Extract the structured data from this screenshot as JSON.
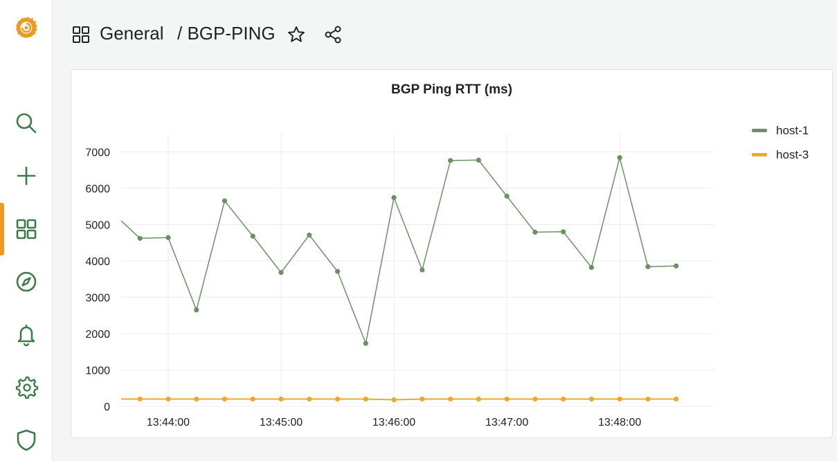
{
  "nav": {
    "items": [
      {
        "name": "grafana-logo-icon"
      },
      {
        "name": "search-icon"
      },
      {
        "name": "plus-icon"
      },
      {
        "name": "dashboards-grid-icon",
        "active": true
      },
      {
        "name": "compass-icon"
      },
      {
        "name": "bell-icon"
      },
      {
        "name": "gear-icon"
      },
      {
        "name": "shield-icon"
      }
    ],
    "accent_color": "#eb9a27",
    "icon_color": "#3c7a48"
  },
  "header": {
    "folder": "General",
    "dashboard": "/ BGP-PING"
  },
  "panel": {
    "title": "BGP Ping RTT (ms)"
  },
  "legend": [
    {
      "label": "host-1",
      "color": "#6c8f64"
    },
    {
      "label": "host-3",
      "color": "#eaa82e"
    }
  ],
  "chart_data": {
    "type": "line",
    "title": "BGP Ping RTT (ms)",
    "x_start": "13:43:35",
    "x_end": "13:48:50",
    "x_ticks": [
      "13:44:00",
      "13:45:00",
      "13:46:00",
      "13:47:00",
      "13:48:00"
    ],
    "y_ticks": [
      0,
      1000,
      2000,
      3000,
      4000,
      5000,
      6000,
      7000
    ],
    "ylim": [
      0,
      7500
    ],
    "grid": true,
    "legend_position": "right",
    "series": [
      {
        "name": "host-1",
        "color": "#6c8f64",
        "points": [
          {
            "x": "13:43:35",
            "y": 5100,
            "marker": false
          },
          {
            "x": "13:43:45",
            "y": 4620
          },
          {
            "x": "13:44:00",
            "y": 4640
          },
          {
            "x": "13:44:15",
            "y": 2650
          },
          {
            "x": "13:44:30",
            "y": 5650
          },
          {
            "x": "13:44:45",
            "y": 4680
          },
          {
            "x": "13:45:00",
            "y": 3680
          },
          {
            "x": "13:45:15",
            "y": 4710
          },
          {
            "x": "13:45:30",
            "y": 3710
          },
          {
            "x": "13:45:45",
            "y": 1730
          },
          {
            "x": "13:46:00",
            "y": 5740
          },
          {
            "x": "13:46:15",
            "y": 3750
          },
          {
            "x": "13:46:30",
            "y": 6760
          },
          {
            "x": "13:46:45",
            "y": 6770
          },
          {
            "x": "13:47:00",
            "y": 5780
          },
          {
            "x": "13:47:15",
            "y": 4790
          },
          {
            "x": "13:47:30",
            "y": 4800
          },
          {
            "x": "13:47:45",
            "y": 3820
          },
          {
            "x": "13:48:00",
            "y": 6840
          },
          {
            "x": "13:48:15",
            "y": 3840
          },
          {
            "x": "13:48:30",
            "y": 3860
          }
        ]
      },
      {
        "name": "host-3",
        "color": "#eaa82e",
        "points": [
          {
            "x": "13:43:35",
            "y": 200,
            "marker": false
          },
          {
            "x": "13:43:45",
            "y": 200
          },
          {
            "x": "13:44:00",
            "y": 200
          },
          {
            "x": "13:44:15",
            "y": 200
          },
          {
            "x": "13:44:30",
            "y": 200
          },
          {
            "x": "13:44:45",
            "y": 200
          },
          {
            "x": "13:45:00",
            "y": 200
          },
          {
            "x": "13:45:15",
            "y": 200
          },
          {
            "x": "13:45:30",
            "y": 200
          },
          {
            "x": "13:45:45",
            "y": 200
          },
          {
            "x": "13:46:00",
            "y": 180
          },
          {
            "x": "13:46:15",
            "y": 200
          },
          {
            "x": "13:46:30",
            "y": 200
          },
          {
            "x": "13:46:45",
            "y": 200
          },
          {
            "x": "13:47:00",
            "y": 200
          },
          {
            "x": "13:47:15",
            "y": 200
          },
          {
            "x": "13:47:30",
            "y": 200
          },
          {
            "x": "13:47:45",
            "y": 200
          },
          {
            "x": "13:48:00",
            "y": 200
          },
          {
            "x": "13:48:15",
            "y": 200
          },
          {
            "x": "13:48:30",
            "y": 200
          }
        ]
      }
    ]
  }
}
